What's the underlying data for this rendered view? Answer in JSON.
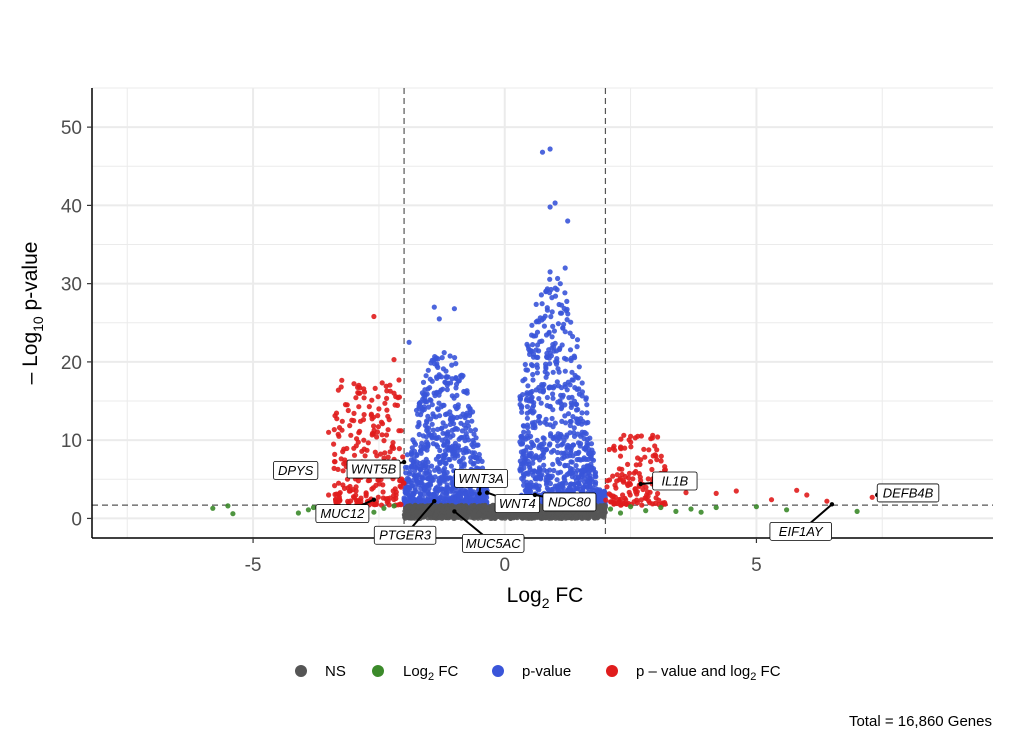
{
  "chart_data": {
    "type": "scatter",
    "title": "",
    "xlabel": {
      "base": "Log",
      "sub": "2",
      "rest": " FC"
    },
    "ylabel": {
      "pre": "– Log",
      "sub": "10",
      "rest": " p-value"
    },
    "xlim": [
      -8.2,
      9.7
    ],
    "ylim": [
      -2.5,
      55
    ],
    "x_ticks": [
      -5,
      0,
      5
    ],
    "x_tick_labels": [
      "-5",
      "0",
      "5"
    ],
    "y_ticks": [
      0,
      10,
      20,
      30,
      40,
      50
    ],
    "y_tick_labels": [
      "0",
      "10",
      "20",
      "30",
      "40",
      "50"
    ],
    "grid": true,
    "fc_cutoff": 2,
    "p_cutoff": 1.7,
    "colors": {
      "NS": "#555555",
      "FC": "#3b8a2a",
      "P": "#3a55d9",
      "FC_P": "#e01c1c",
      "cutoff_line": "#555555",
      "axis": "#000000",
      "grid": "#ebebeb"
    },
    "legend": {
      "position": "bottom",
      "items": [
        {
          "key": "NS",
          "label": "NS",
          "color": "#555555"
        },
        {
          "key": "FC",
          "label_main": "Log",
          "label_sub": "2",
          "label_rest": " FC",
          "color": "#3b8a2a"
        },
        {
          "key": "P",
          "label": "p-value",
          "color": "#3a55d9"
        },
        {
          "key": "FC_P",
          "label_main": "p – value and log",
          "label_sub": "2",
          "label_rest": " FC",
          "color": "#e01c1c"
        }
      ]
    },
    "caption": "Total = 16,860 Genes",
    "labeled_genes": [
      {
        "gene": "DPYS",
        "x": -3.9,
        "y": 5.5
      },
      {
        "gene": "WNT5B",
        "x": -2.0,
        "y": 7.2
      },
      {
        "gene": "WNT3A",
        "x": -0.5,
        "y": 3.2
      },
      {
        "gene": "WNT4",
        "x": -0.35,
        "y": 3.3
      },
      {
        "gene": "NDC80",
        "x": 0.6,
        "y": 3.0
      },
      {
        "gene": "MUC12",
        "x": -2.6,
        "y": 2.4
      },
      {
        "gene": "PTGER3",
        "x": -1.4,
        "y": 2.2
      },
      {
        "gene": "MUC5AC",
        "x": -1.0,
        "y": 0.9
      },
      {
        "gene": "IL1B",
        "x": 2.7,
        "y": 4.4
      },
      {
        "gene": "EIF1AY",
        "x": 6.5,
        "y": 1.8
      },
      {
        "gene": "DEFB4B",
        "x": 7.4,
        "y": 3.0
      }
    ],
    "points": [
      {
        "group": "FC",
        "x": -5.8,
        "y": 1.3
      },
      {
        "group": "FC",
        "x": -5.5,
        "y": 1.6
      },
      {
        "group": "FC",
        "x": -5.4,
        "y": 0.6
      },
      {
        "group": "FC",
        "x": -4.1,
        "y": 0.7
      },
      {
        "group": "FC",
        "x": -3.9,
        "y": 1.1
      },
      {
        "group": "FC",
        "x": -3.8,
        "y": 1.4
      },
      {
        "group": "FC",
        "x": -3.6,
        "y": 1.2
      },
      {
        "group": "FC",
        "x": -3.3,
        "y": 0.9
      },
      {
        "group": "FC",
        "x": -2.9,
        "y": 1.5
      },
      {
        "group": "FC",
        "x": -2.6,
        "y": 0.8
      },
      {
        "group": "FC",
        "x": -2.4,
        "y": 1.3
      },
      {
        "group": "FC",
        "x": -2.2,
        "y": 1.6
      },
      {
        "group": "FC",
        "x": 2.1,
        "y": 1.2
      },
      {
        "group": "FC",
        "x": 2.3,
        "y": 0.7
      },
      {
        "group": "FC",
        "x": 2.5,
        "y": 1.5
      },
      {
        "group": "FC",
        "x": 2.8,
        "y": 1.0
      },
      {
        "group": "FC",
        "x": 3.1,
        "y": 1.4
      },
      {
        "group": "FC",
        "x": 3.4,
        "y": 0.9
      },
      {
        "group": "FC",
        "x": 3.7,
        "y": 1.2
      },
      {
        "group": "FC",
        "x": 3.9,
        "y": 0.8
      },
      {
        "group": "FC",
        "x": 4.2,
        "y": 1.4
      },
      {
        "group": "FC",
        "x": 5.0,
        "y": 1.5
      },
      {
        "group": "FC",
        "x": 5.6,
        "y": 1.1
      },
      {
        "group": "FC",
        "x": 7.0,
        "y": 0.9
      },
      {
        "group": "FC_P",
        "x": -2.6,
        "y": 25.8
      },
      {
        "group": "FC_P",
        "x": -2.2,
        "y": 20.3
      },
      {
        "group": "FC_P",
        "x": -2.9,
        "y": 17.0
      },
      {
        "group": "FC_P",
        "x": -3.0,
        "y": 12.5
      },
      {
        "group": "FC_P",
        "x": -3.5,
        "y": 11.0
      },
      {
        "group": "FC_P",
        "x": -3.4,
        "y": 9.5
      },
      {
        "group": "FC_P",
        "x": -3.2,
        "y": 7.0
      },
      {
        "group": "FC_P",
        "x": -3.5,
        "y": 3.0
      },
      {
        "group": "FC_P",
        "x": -3.3,
        "y": 4.5
      },
      {
        "group": "FC_P",
        "x": -2.2,
        "y": 16.0
      },
      {
        "group": "FC_P",
        "x": -2.5,
        "y": 14.0
      },
      {
        "group": "FC_P",
        "x": -2.8,
        "y": 10.0
      },
      {
        "group": "FC_P",
        "x": 2.5,
        "y": 10.5
      },
      {
        "group": "FC_P",
        "x": 2.3,
        "y": 9.0
      },
      {
        "group": "FC_P",
        "x": 2.7,
        "y": 7.5
      },
      {
        "group": "FC_P",
        "x": 3.0,
        "y": 5.0
      },
      {
        "group": "FC_P",
        "x": 3.6,
        "y": 3.3
      },
      {
        "group": "FC_P",
        "x": 4.2,
        "y": 3.2
      },
      {
        "group": "FC_P",
        "x": 4.6,
        "y": 3.5
      },
      {
        "group": "FC_P",
        "x": 5.3,
        "y": 2.4
      },
      {
        "group": "FC_P",
        "x": 5.8,
        "y": 3.6
      },
      {
        "group": "FC_P",
        "x": 6.0,
        "y": 3.0
      },
      {
        "group": "FC_P",
        "x": 6.4,
        "y": 2.2
      },
      {
        "group": "FC_P",
        "x": 7.3,
        "y": 2.7
      },
      {
        "group": "P",
        "x": 0.75,
        "y": 46.8
      },
      {
        "group": "P",
        "x": 0.9,
        "y": 47.2
      },
      {
        "group": "P",
        "x": 0.9,
        "y": 39.8
      },
      {
        "group": "P",
        "x": 1.0,
        "y": 40.3
      },
      {
        "group": "P",
        "x": 1.25,
        "y": 38.0
      },
      {
        "group": "P",
        "x": 1.2,
        "y": 32.0
      },
      {
        "group": "P",
        "x": 0.9,
        "y": 31.5
      },
      {
        "group": "P",
        "x": -1.4,
        "y": 27.0
      },
      {
        "group": "P",
        "x": -1.0,
        "y": 26.8
      },
      {
        "group": "P",
        "x": -1.3,
        "y": 25.5
      },
      {
        "group": "P",
        "x": -1.9,
        "y": 22.5
      }
    ],
    "clusters": [
      {
        "group": "P",
        "side": "left",
        "x_range": [
          -2.0,
          -0.35
        ],
        "peak_x": -1.2,
        "peak_y": 20,
        "count": 900
      },
      {
        "group": "P",
        "side": "right",
        "x_range": [
          0.3,
          2.0
        ],
        "peak_x": 0.95,
        "peak_y": 30,
        "count": 1000
      },
      {
        "group": "FC_P",
        "side": "left",
        "x_range": [
          -3.4,
          -2.0
        ],
        "peak_y": 16,
        "count": 230
      },
      {
        "group": "FC_P",
        "side": "right",
        "x_range": [
          2.0,
          3.2
        ],
        "peak_y": 9,
        "count": 140
      },
      {
        "group": "NS",
        "side": "center",
        "x_range": [
          -2.0,
          2.0
        ],
        "peak_y": 1.7,
        "count": 1200
      }
    ]
  }
}
